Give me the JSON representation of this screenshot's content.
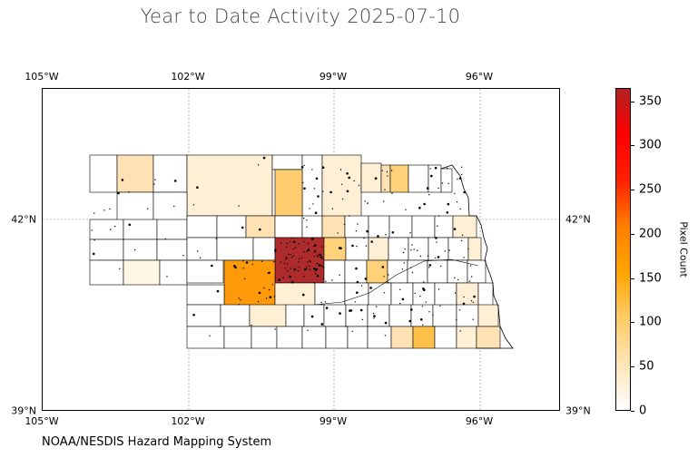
{
  "title": "Year to Date Activity 2025-07-10",
  "credit": "NOAA/NESDIS Hazard Mapping System",
  "map": {
    "region": "Nebraska counties",
    "gridlines": "dashed-gray",
    "lon_labels": [
      "105°W",
      "102°W",
      "99°W",
      "96°W"
    ],
    "lat_labels": [
      "42°N",
      "39°N"
    ],
    "colors": {
      "boundary": "#000000",
      "gridline": "#aaaaaa",
      "points": "#000000"
    }
  },
  "colorbar": {
    "title": "Pixel Count",
    "tick_labels": [
      "0",
      "50",
      "100",
      "150",
      "200",
      "250",
      "300",
      "350"
    ],
    "min": 0,
    "max": 365,
    "colormap": [
      "#ffffff",
      "#ffe4b5",
      "#ffcc66",
      "#ffa500",
      "#ff8000",
      "#ff2000",
      "#ff0000",
      "#b22222"
    ]
  }
}
